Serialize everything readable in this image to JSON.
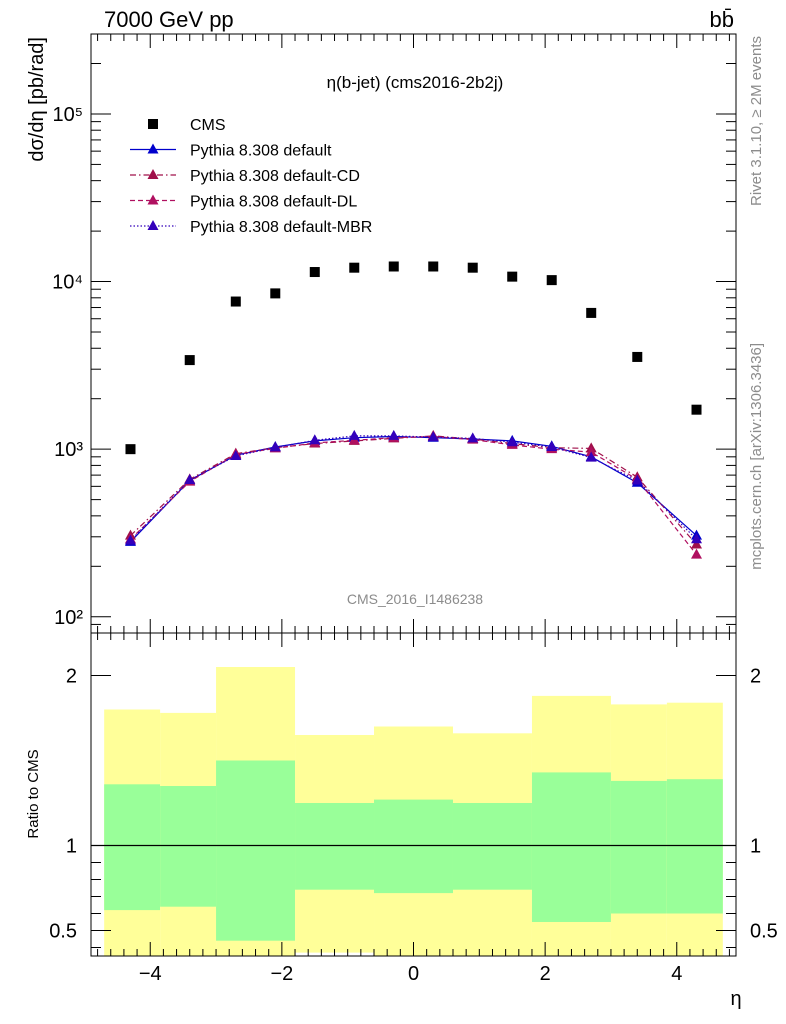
{
  "header": {
    "energy_label": "7000 GeV pp",
    "process_label": "bb̄",
    "plot_title": "η(b-jet) (cms2016-2b2j)",
    "analysis_id": "CMS_2016_I1486238",
    "side_label_top": "Rivet 3.1.10, ≥ 2M events",
    "side_label_bottom": "mcplots.cern.ch [arXiv:1306.3436]"
  },
  "chart_data": [
    {
      "type": "scatter",
      "title": "η(b-jet) (cms2016-2b2j)",
      "xlabel": "η",
      "ylabel": "dσ/dη [pb/rad]",
      "xlim": [
        -4.9,
        4.9
      ],
      "ylim": [
        80,
        300000
      ],
      "yscale": "log",
      "x_ticks": [
        "−4",
        "−2",
        "0",
        "2",
        "4"
      ],
      "y_ticks": [
        "10²",
        "10³",
        "10⁴",
        "10⁵"
      ],
      "legend_placement": "top-left",
      "x": [
        -4.3,
        -3.4,
        -2.7,
        -2.1,
        -1.5,
        -0.9,
        -0.3,
        0.3,
        0.9,
        1.5,
        2.1,
        2.7,
        3.4,
        4.3
      ],
      "series": [
        {
          "name": "CMS",
          "style": "square",
          "color": "#000000",
          "values": [
            1000,
            3400,
            7600,
            8500,
            11400,
            12100,
            12300,
            12300,
            12100,
            10700,
            10200,
            6500,
            3550,
            1720
          ]
        },
        {
          "name": "Pythia 8.308 default",
          "style": "solid",
          "color": "#0000cc",
          "values": [
            280,
            650,
            920,
            1030,
            1120,
            1170,
            1190,
            1170,
            1150,
            1120,
            1040,
            900,
            630,
            305
          ]
        },
        {
          "name": "Pythia 8.308 default-CD",
          "style": "dashdot",
          "color": "#a0104a",
          "values": [
            305,
            660,
            940,
            1020,
            1080,
            1120,
            1160,
            1200,
            1150,
            1080,
            1020,
            1010,
            680,
            270
          ]
        },
        {
          "name": "Pythia 8.308 default-DL",
          "style": "dashed",
          "color": "#b01060",
          "values": [
            290,
            640,
            930,
            1010,
            1090,
            1130,
            1170,
            1190,
            1140,
            1060,
            1000,
            960,
            660,
            235
          ]
        },
        {
          "name": "Pythia 8.308 default-MBR",
          "style": "dotted",
          "color": "#3300bb",
          "values": [
            285,
            655,
            910,
            1025,
            1130,
            1200,
            1200,
            1180,
            1160,
            1100,
            1030,
            890,
            650,
            290
          ]
        }
      ]
    },
    {
      "type": "area",
      "xlabel": "η",
      "ylabel": "Ratio to CMS",
      "xlim": [
        -4.9,
        4.9
      ],
      "ylim": [
        0.35,
        2.25
      ],
      "x_ticks": [
        "−4",
        "−2",
        "0",
        "2",
        "4"
      ],
      "y_ticks": [
        "0.5",
        "1",
        "2"
      ],
      "reference_line": 1,
      "bins": [
        -4.7,
        -3.85,
        -3.0,
        -1.8,
        -0.6,
        0.6,
        1.8,
        3.0,
        3.85,
        4.7
      ],
      "yellow_band": {
        "color": "#ffff99",
        "upper": [
          1.8,
          1.78,
          2.05,
          1.65,
          1.7,
          1.66,
          1.88,
          1.83,
          1.84
        ],
        "lower": [
          0.33,
          0.33,
          0.33,
          0.37,
          0.35,
          0.35,
          0.33,
          0.33,
          0.33
        ]
      },
      "green_band": {
        "color": "#99ff99",
        "upper": [
          1.36,
          1.35,
          1.5,
          1.25,
          1.27,
          1.25,
          1.43,
          1.38,
          1.39
        ],
        "lower": [
          0.62,
          0.64,
          0.44,
          0.74,
          0.72,
          0.74,
          0.55,
          0.6,
          0.6
        ]
      }
    }
  ]
}
